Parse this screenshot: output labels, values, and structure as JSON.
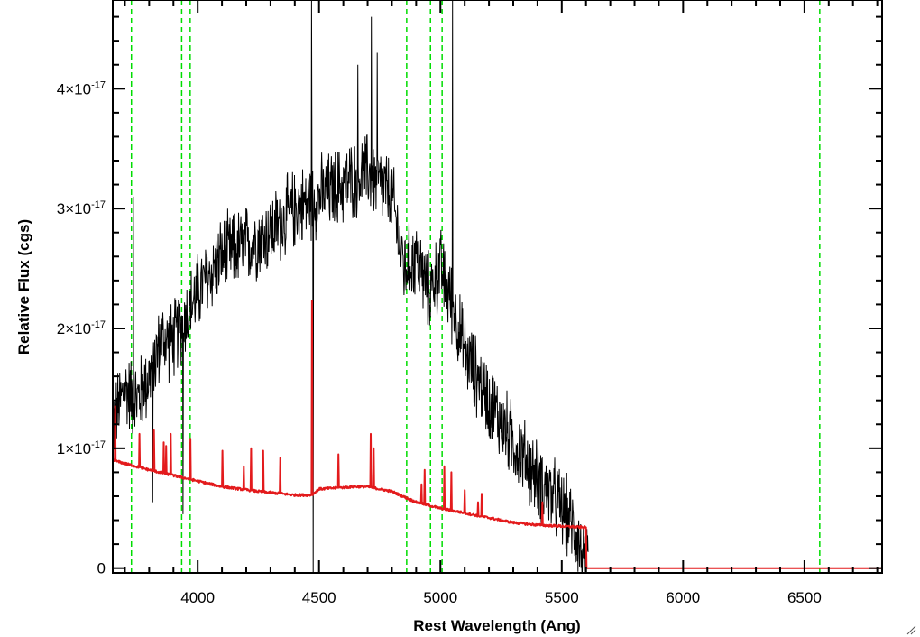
{
  "chart_data": {
    "type": "line",
    "title": "",
    "xlabel": "Rest Wavelength (Ang)",
    "ylabel": "Relative Flux (cgs)",
    "xlim": [
      3650,
      6820
    ],
    "ylim": [
      -4e-19,
      4.74e-17
    ],
    "x_ticks": [
      {
        "value": 4000,
        "label": "4000"
      },
      {
        "value": 4500,
        "label": "4500"
      },
      {
        "value": 5000,
        "label": "5000"
      },
      {
        "value": 5500,
        "label": "5500"
      },
      {
        "value": 6000,
        "label": "6000"
      },
      {
        "value": 6500,
        "label": "6500"
      }
    ],
    "y_ticks": [
      {
        "value": 0,
        "mantissa": "0",
        "exponent": ""
      },
      {
        "value": 1e-17,
        "mantissa": "1×10",
        "exponent": "-17"
      },
      {
        "value": 2e-17,
        "mantissa": "2×10",
        "exponent": "-17"
      },
      {
        "value": 3e-17,
        "mantissa": "3×10",
        "exponent": "-17"
      },
      {
        "value": 4e-17,
        "mantissa": "4×10",
        "exponent": "-17"
      }
    ],
    "grid": false,
    "legend": "none",
    "series": [
      {
        "role": "observed-spectrum",
        "color": "#000000",
        "style": "noisy",
        "envelope": {
          "x": [
            3650,
            3700,
            3750,
            3800,
            3850,
            3900,
            3950,
            4000,
            4100,
            4200,
            4300,
            4400,
            4500,
            4600,
            4700,
            4800,
            4850,
            4900,
            4950,
            5000,
            5050,
            5100,
            5200,
            5300,
            5400,
            5500,
            5560,
            5600
          ],
          "y": [
            1.2e-17,
            1.5e-17,
            1.4e-17,
            1.6e-17,
            1.9e-17,
            1.9e-17,
            2.1e-17,
            2.3e-17,
            2.6e-17,
            2.7e-17,
            2.8e-17,
            3e-17,
            3.1e-17,
            3.2e-17,
            3.3e-17,
            3.1e-17,
            2.5e-17,
            2.6e-17,
            2.3e-17,
            2.5e-17,
            2.2e-17,
            1.8e-17,
            1.4e-17,
            1.05e-17,
            7.5e-18,
            5e-18,
            3e-18,
            0.0
          ]
        },
        "noise_amplitude": 2.8e-18,
        "spikes": [
          {
            "x": 3735,
            "y": 3.1e-17
          },
          {
            "x": 4470,
            "y": 4.74e-17
          },
          {
            "x": 4475,
            "y": -4e-19
          },
          {
            "x": 4715,
            "y": 4.6e-17
          },
          {
            "x": 4740,
            "y": 4.3e-17
          },
          {
            "x": 4660,
            "y": 4.2e-17
          },
          {
            "x": 5050,
            "y": 4.74e-17
          },
          {
            "x": 3940,
            "y": 4.5e-18
          },
          {
            "x": 3815,
            "y": 5.5e-18
          }
        ],
        "x_range": [
          3650,
          5610
        ]
      },
      {
        "role": "model-spectrum",
        "color": "#e31a1c",
        "continuum": {
          "x": [
            3650,
            3800,
            3950,
            4100,
            4250,
            4400,
            4470,
            4500,
            4650,
            4700,
            4800,
            4900,
            5000,
            5100,
            5200,
            5300,
            5400,
            5500,
            5600,
            5601,
            6820
          ],
          "y": [
            9e-18,
            8.2e-18,
            7.5e-18,
            6.8e-18,
            6.4e-18,
            6.1e-18,
            6.1e-18,
            6.6e-18,
            6.8e-18,
            6.8e-18,
            6.4e-18,
            5.5e-18,
            5e-18,
            4.6e-18,
            4.2e-18,
            3.8e-18,
            3.6e-18,
            3.5e-18,
            3.4e-18,
            0.0,
            0.0
          ]
        },
        "lines": [
          {
            "x": 3660,
            "y": 1.35e-17
          },
          {
            "x": 3760,
            "y": 1.12e-17
          },
          {
            "x": 3820,
            "y": 1.15e-17
          },
          {
            "x": 3860,
            "y": 1.05e-17
          },
          {
            "x": 3870,
            "y": 1.02e-17
          },
          {
            "x": 3889,
            "y": 1.12e-17
          },
          {
            "x": 3970,
            "y": 1.08e-17
          },
          {
            "x": 4102,
            "y": 9.8e-18
          },
          {
            "x": 4190,
            "y": 8.5e-18
          },
          {
            "x": 4220,
            "y": 1e-17
          },
          {
            "x": 4270,
            "y": 9.8e-18
          },
          {
            "x": 4340,
            "y": 9.2e-18
          },
          {
            "x": 4471,
            "y": 2.23e-17
          },
          {
            "x": 4580,
            "y": 9.5e-18
          },
          {
            "x": 4713,
            "y": 1.12e-17
          },
          {
            "x": 4725,
            "y": 1e-17
          },
          {
            "x": 4922,
            "y": 7e-18
          },
          {
            "x": 4935,
            "y": 8.2e-18
          },
          {
            "x": 5016,
            "y": 8.5e-18
          },
          {
            "x": 5045,
            "y": 8e-18
          },
          {
            "x": 5100,
            "y": 6.5e-18
          },
          {
            "x": 5155,
            "y": 5.5e-18
          },
          {
            "x": 5170,
            "y": 6.2e-18
          },
          {
            "x": 5420,
            "y": 5.5e-18
          }
        ]
      }
    ],
    "vertical_markers": [
      {
        "x": 3727,
        "color": "#00dd00",
        "style": "dashed"
      },
      {
        "x": 3934,
        "color": "#00dd00",
        "style": "dashed"
      },
      {
        "x": 3969,
        "color": "#00dd00",
        "style": "dashed"
      },
      {
        "x": 4861,
        "color": "#00dd00",
        "style": "dashed"
      },
      {
        "x": 4959,
        "color": "#00dd00",
        "style": "dashed"
      },
      {
        "x": 5007,
        "color": "#00dd00",
        "style": "dashed"
      },
      {
        "x": 6563,
        "color": "#00dd00",
        "style": "dashed"
      }
    ]
  }
}
